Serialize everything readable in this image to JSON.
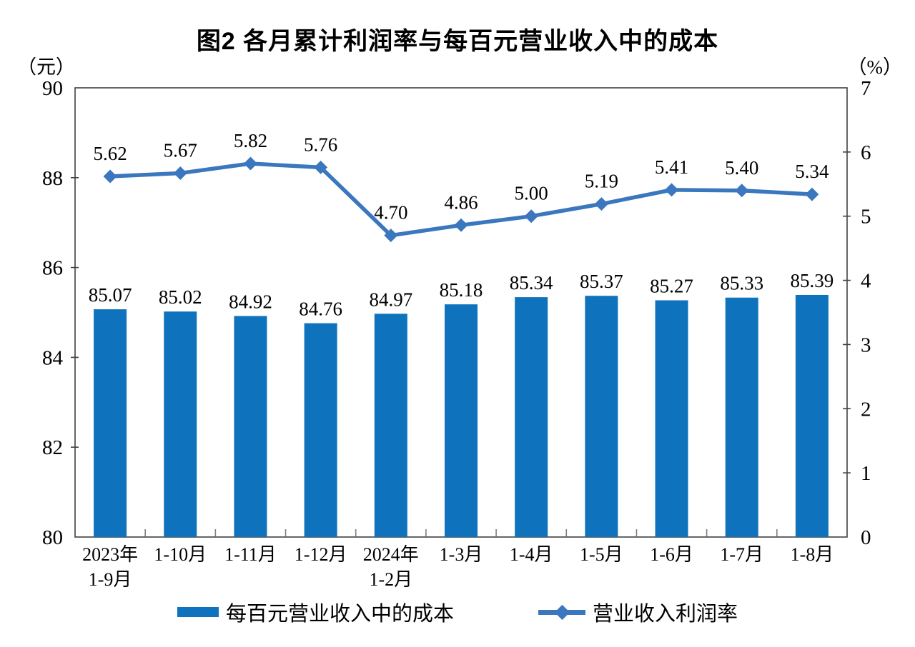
{
  "title": "图2 各月累计利润率与每百元营业收入中的成本",
  "colors": {
    "bar": "#0E73BC",
    "line": "#3A77BE",
    "axis": "#404040",
    "boundary_tick": "#808080",
    "text": "#000000"
  },
  "chart_data": {
    "type": "bar",
    "subtype": "bar+line dual axis",
    "title": "图2 各月累计利润率与每百元营业收入中的成本",
    "left_axis_unit": "（元）",
    "right_axis_unit": "（%）",
    "left_ylim": [
      80,
      90
    ],
    "right_ylim": [
      0,
      7
    ],
    "left_ticks": [
      90,
      88,
      86,
      84,
      82,
      80
    ],
    "right_ticks": [
      7,
      6,
      5,
      4,
      3,
      2,
      1,
      0
    ],
    "grid": false,
    "legend_position": "bottom",
    "categories": [
      [
        "2023年",
        "1-9月"
      ],
      [
        "1-10月"
      ],
      [
        "1-11月"
      ],
      [
        "1-12月"
      ],
      [
        "2024年",
        "1-2月"
      ],
      [
        "1-3月"
      ],
      [
        "1-4月"
      ],
      [
        "1-5月"
      ],
      [
        "1-6月"
      ],
      [
        "1-7月"
      ],
      [
        "1-8月"
      ]
    ],
    "series": [
      {
        "name": "每百元营业收入中的成本",
        "type": "bar",
        "axis": "left",
        "color": "#0E73BC",
        "values": [
          85.07,
          85.02,
          84.92,
          84.76,
          84.97,
          85.18,
          85.34,
          85.37,
          85.27,
          85.33,
          85.39
        ],
        "labels": [
          "85.07",
          "85.02",
          "84.92",
          "84.76",
          "84.97",
          "85.18",
          "85.34",
          "85.37",
          "85.27",
          "85.33",
          "85.39"
        ]
      },
      {
        "name": "营业收入利润率",
        "type": "line",
        "axis": "right",
        "color": "#3A77BE",
        "marker": "diamond",
        "values": [
          5.62,
          5.67,
          5.82,
          5.76,
          4.7,
          4.86,
          5.0,
          5.19,
          5.41,
          5.4,
          5.34
        ],
        "labels": [
          "5.62",
          "5.67",
          "5.82",
          "5.76",
          "4.70",
          "4.86",
          "5.00",
          "5.19",
          "5.41",
          "5.40",
          "5.34"
        ]
      }
    ]
  },
  "legend": {
    "bar_label": "每百元营业收入中的成本",
    "line_label": "营业收入利润率"
  }
}
